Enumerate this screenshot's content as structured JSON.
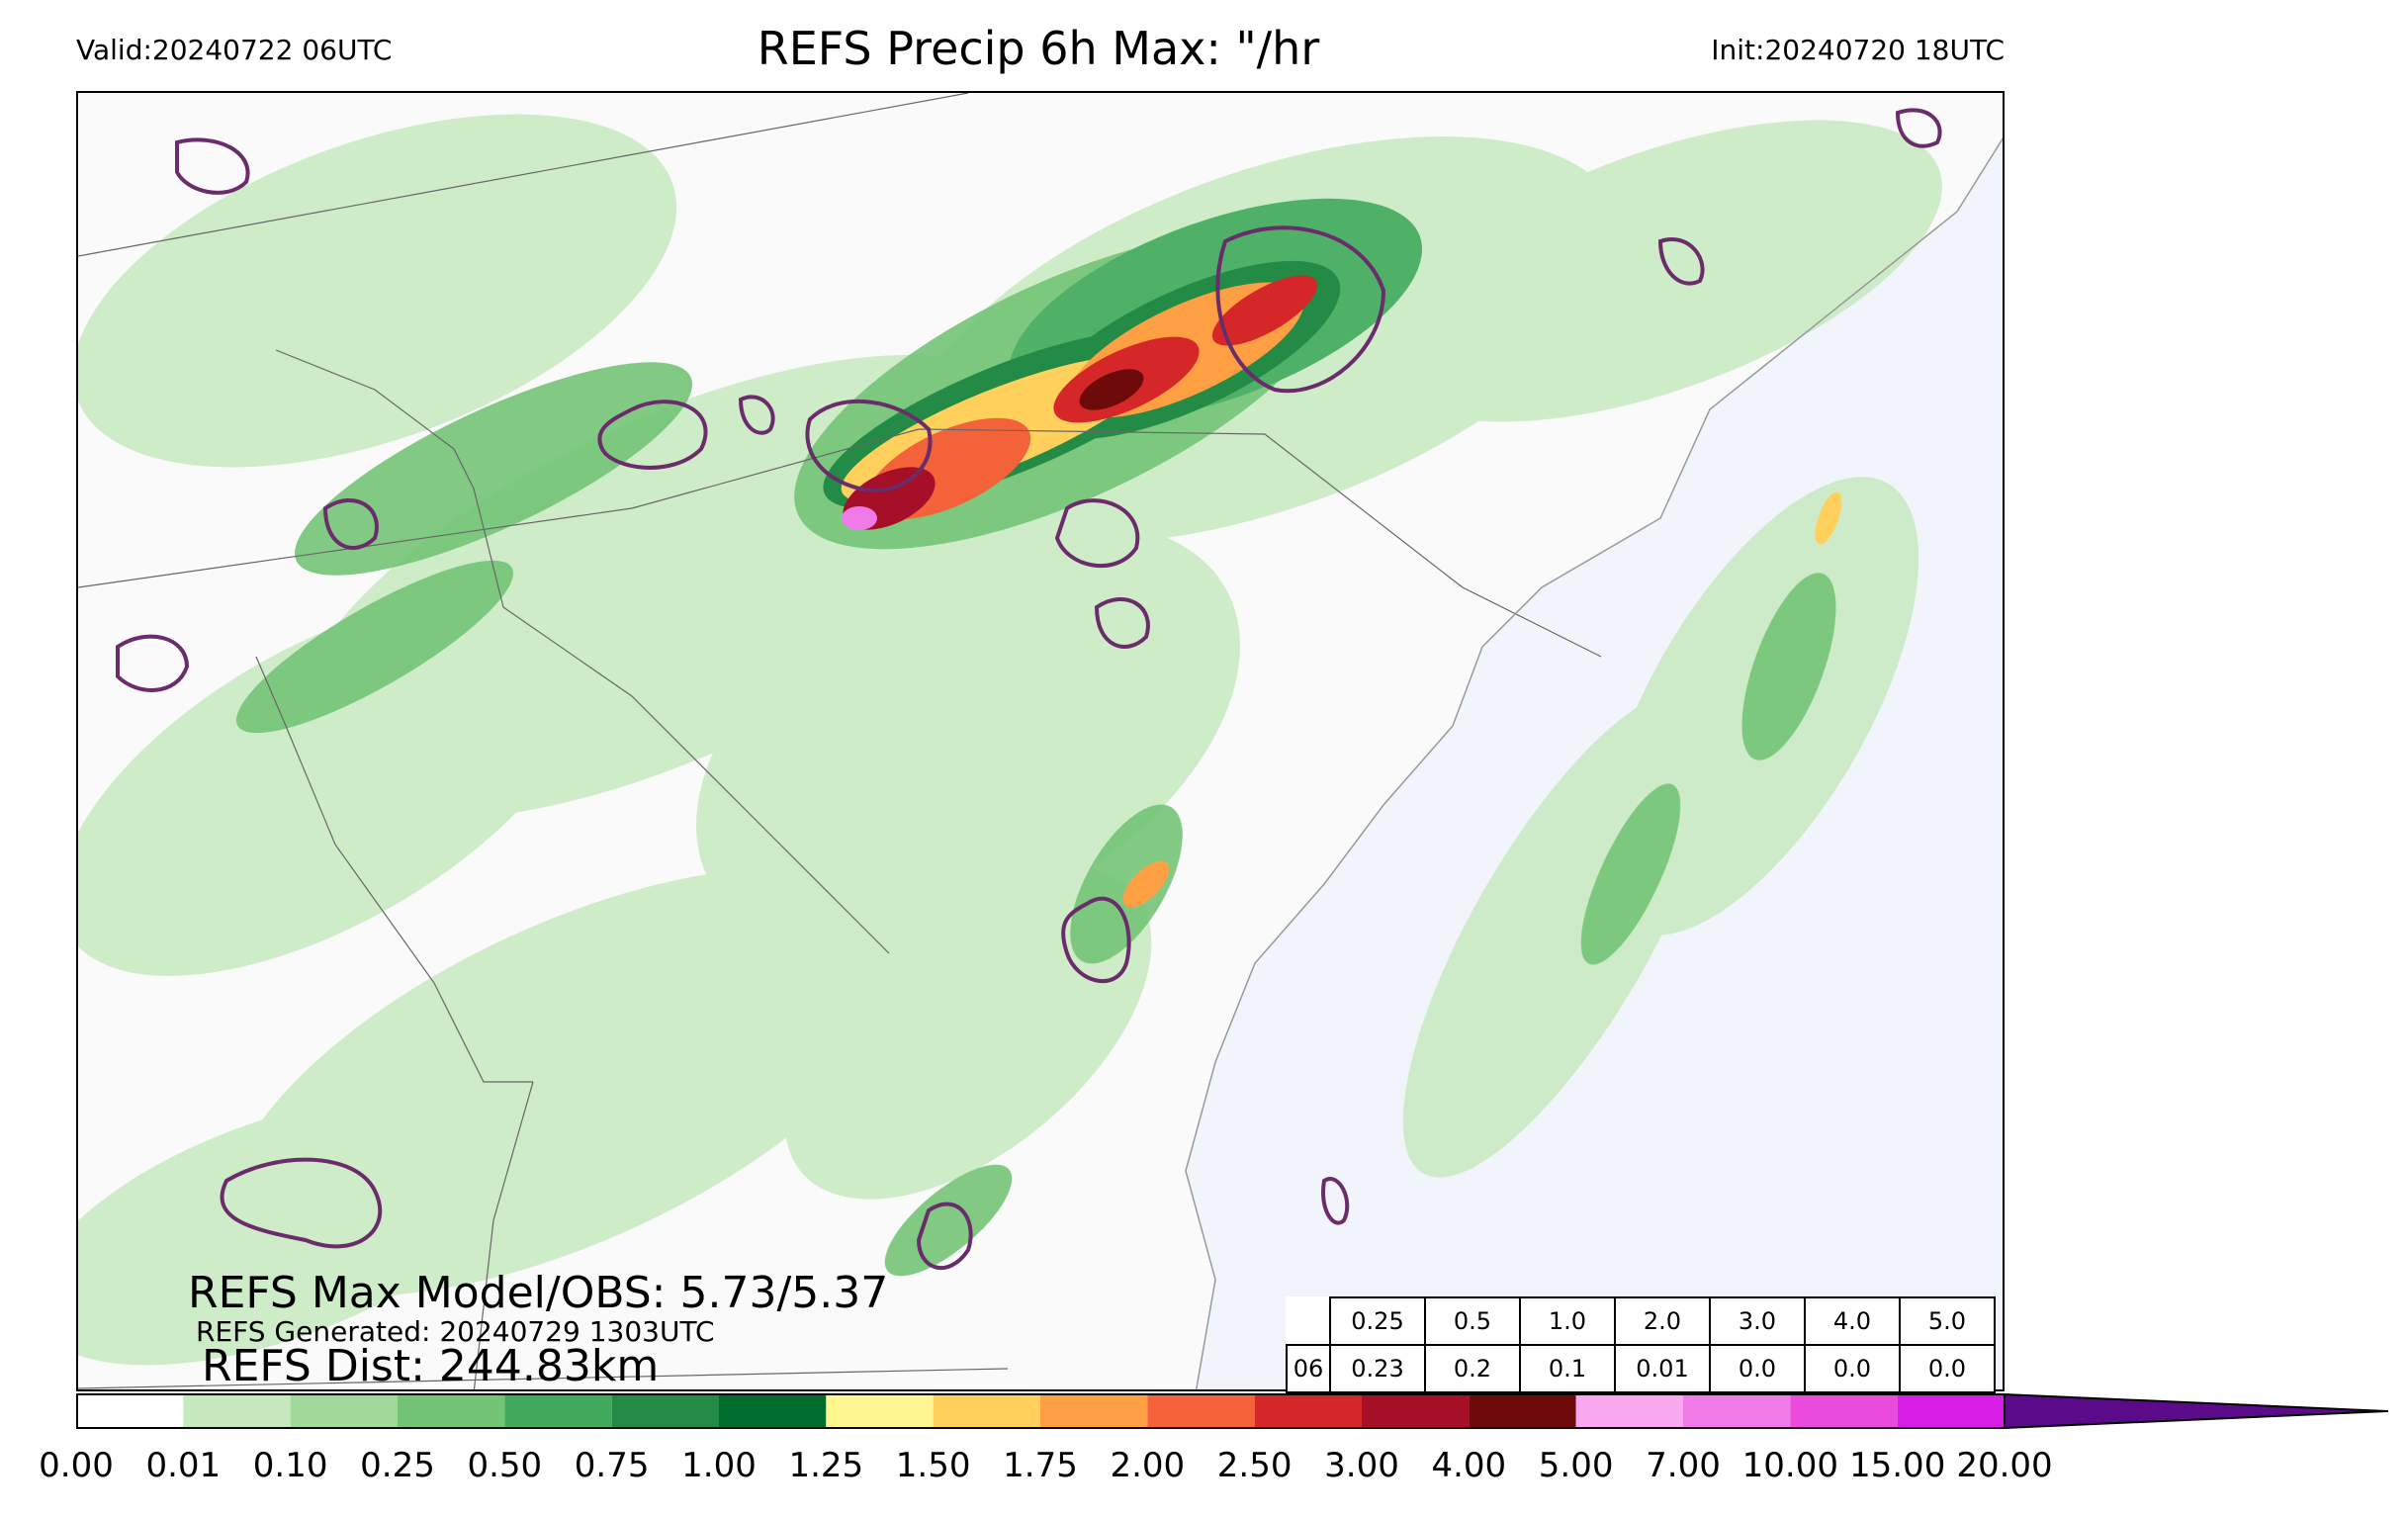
{
  "header": {
    "valid": "Valid:20240722 06UTC",
    "title": "REFS Precip 6h Max: \"/hr",
    "init": "Init:20240720 18UTC"
  },
  "stats": {
    "max_model_obs": "REFS Max Model/OBS: 5.73/5.37",
    "generated": "REFS Generated: 20240729 1303UTC",
    "dist": "REFS Dist: 244.83km"
  },
  "threshold_table": {
    "thresholds": [
      "0.25",
      "0.5",
      "1.0",
      "2.0",
      "3.0",
      "4.0",
      "5.0"
    ],
    "row_label": "06",
    "values": [
      "0.23",
      "0.2",
      "0.1",
      "0.01",
      "0.0",
      "0.0",
      "0.0"
    ]
  },
  "colorbar": {
    "ticks": [
      "0.00",
      "0.01",
      "0.10",
      "0.25",
      "0.50",
      "0.75",
      "1.00",
      "1.25",
      "1.50",
      "1.75",
      "2.00",
      "2.50",
      "3.00",
      "4.00",
      "5.00",
      "7.00",
      "10.00",
      "15.00",
      "20.00"
    ],
    "colors": [
      "#ffffff",
      "#c7e9c0",
      "#a1d99b",
      "#74c476",
      "#41ab5d",
      "#238b45",
      "#006d2c",
      "#fff68f",
      "#ffd15c",
      "#ff9f43",
      "#f4623a",
      "#d62728",
      "#a50f28",
      "#6e0a0a",
      "#f7a8ee",
      "#f07ae8",
      "#ea4bdc",
      "#d81ee6",
      "#9a0ed0",
      "#5b0a8a"
    ]
  },
  "map_colors": {
    "ocean": "#f1f5fb",
    "land": "#fafafa",
    "obs_contour": "#6a2c6a",
    "boundary": "#666666"
  }
}
